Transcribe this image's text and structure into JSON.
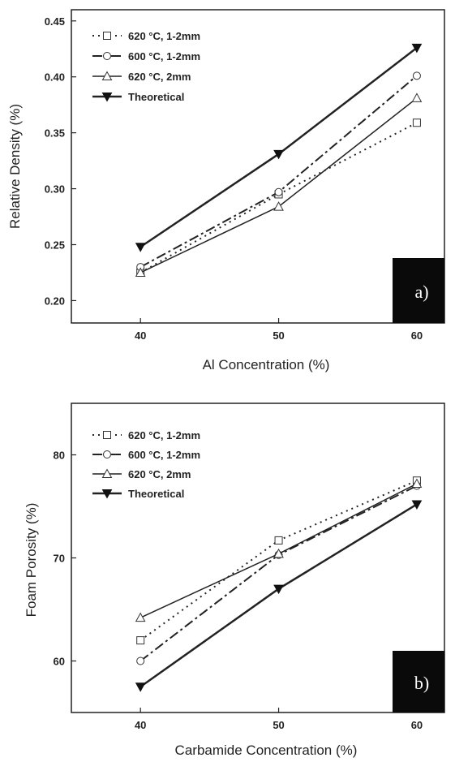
{
  "chart_data": [
    {
      "type": "line",
      "panel_label": "a)",
      "xlabel": "Al Concentration (%)",
      "ylabel": "Relative Density (%)",
      "x": [
        40,
        50,
        60
      ],
      "xlim": [
        35,
        62
      ],
      "ylim": [
        0.18,
        0.46
      ],
      "xticks": [
        "40",
        "50",
        "60"
      ],
      "yticks": [
        "0.20",
        "0.25",
        "0.30",
        "0.35",
        "0.40",
        "0.45"
      ],
      "legend_position": "top-left",
      "series": [
        {
          "name": "620 °C, 1-2mm",
          "marker": "square-open",
          "dash": "dot",
          "values": [
            0.225,
            0.295,
            0.359
          ]
        },
        {
          "name": "600 °C, 1-2mm",
          "marker": "circle-open",
          "dash": "dashdot",
          "values": [
            0.23,
            0.297,
            0.401
          ]
        },
        {
          "name": "620 °C, 2mm",
          "marker": "triangle-up-open",
          "dash": "solid",
          "values": [
            0.225,
            0.284,
            0.381
          ]
        },
        {
          "name": "Theoretical",
          "marker": "triangle-down-filled",
          "dash": "solid-thick",
          "values": [
            0.248,
            0.331,
            0.426
          ]
        }
      ]
    },
    {
      "type": "line",
      "panel_label": "b)",
      "xlabel": "Carbamide Concentration (%)",
      "ylabel": "Foam Porosity (%)",
      "x": [
        40,
        50,
        60
      ],
      "xlim": [
        35,
        62
      ],
      "ylim": [
        55,
        85
      ],
      "xticks": [
        "40",
        "50",
        "60"
      ],
      "yticks": [
        "60",
        "70",
        "80"
      ],
      "legend_position": "top-left",
      "series": [
        {
          "name": "620 °C, 1-2mm",
          "marker": "square-open",
          "dash": "dot",
          "values": [
            62.0,
            71.7,
            77.5
          ]
        },
        {
          "name": "600 °C, 1-2mm",
          "marker": "circle-open",
          "dash": "dashdot",
          "values": [
            60.0,
            70.3,
            77.0
          ]
        },
        {
          "name": "620 °C, 2mm",
          "marker": "triangle-up-open",
          "dash": "solid",
          "values": [
            64.2,
            70.4,
            77.2
          ]
        },
        {
          "name": "Theoretical",
          "marker": "triangle-down-filled",
          "dash": "solid-thick",
          "values": [
            57.5,
            67.0,
            75.2
          ]
        }
      ]
    }
  ]
}
